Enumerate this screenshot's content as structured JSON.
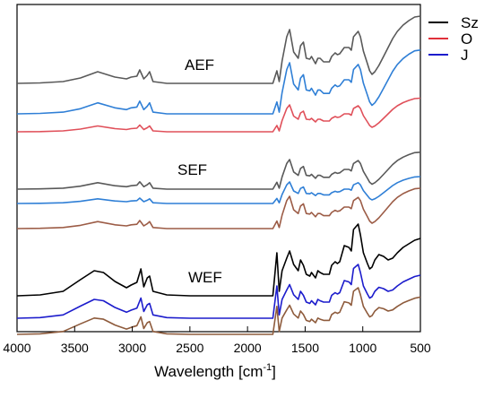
{
  "chart_data": {
    "type": "line",
    "title": "",
    "xlabel": "Wavelength [cm",
    "xlabel_sup": "-1",
    "xlabel_close": "]",
    "ylabel": "",
    "xlim": [
      4000,
      500
    ],
    "x_reversed": true,
    "grid": false,
    "legend_position": "top-right",
    "xticks": [
      4000,
      3500,
      3000,
      2500,
      2000,
      1500,
      1000,
      500
    ],
    "xtick_labels": [
      "4000",
      "3500",
      "3000",
      "2500",
      "2000",
      "1500",
      "1000",
      "500"
    ],
    "legend": [
      {
        "label": "Sz",
        "color": "#000000"
      },
      {
        "label": "O",
        "color": "#e0303a"
      },
      {
        "label": "J",
        "color": "#1c1ccc"
      }
    ],
    "group_labels": {
      "aef": "AEF",
      "sef": "SEF",
      "wef": "WEF"
    },
    "profiles": {
      "standard": [
        [
          4000,
          0
        ],
        [
          3800,
          0.5
        ],
        [
          3600,
          2
        ],
        [
          3450,
          6
        ],
        [
          3300,
          13
        ],
        [
          3150,
          7
        ],
        [
          3050,
          5
        ],
        [
          3010,
          7
        ],
        [
          2960,
          8
        ],
        [
          2935,
          15
        ],
        [
          2900,
          5
        ],
        [
          2870,
          9
        ],
        [
          2850,
          13
        ],
        [
          2820,
          2
        ],
        [
          2700,
          0
        ],
        [
          2500,
          0
        ],
        [
          2300,
          0
        ],
        [
          2100,
          0
        ],
        [
          1900,
          0
        ],
        [
          1780,
          0
        ],
        [
          1745,
          14
        ],
        [
          1725,
          2
        ],
        [
          1700,
          25
        ],
        [
          1660,
          52
        ],
        [
          1635,
          60
        ],
        [
          1600,
          35
        ],
        [
          1560,
          28
        ],
        [
          1540,
          42
        ],
        [
          1515,
          46
        ],
        [
          1490,
          28
        ],
        [
          1460,
          27
        ],
        [
          1445,
          30
        ],
        [
          1410,
          22
        ],
        [
          1390,
          28
        ],
        [
          1370,
          28
        ],
        [
          1340,
          24
        ],
        [
          1320,
          24
        ],
        [
          1290,
          24
        ],
        [
          1270,
          30
        ],
        [
          1240,
          34
        ],
        [
          1220,
          32
        ],
        [
          1200,
          33
        ],
        [
          1160,
          40
        ],
        [
          1120,
          40
        ],
        [
          1100,
          37
        ],
        [
          1080,
          52
        ],
        [
          1040,
          58
        ],
        [
          1020,
          52
        ],
        [
          995,
          36
        ],
        [
          960,
          22
        ],
        [
          940,
          14
        ],
        [
          920,
          10
        ],
        [
          895,
          13
        ],
        [
          860,
          20
        ],
        [
          820,
          30
        ],
        [
          780,
          40
        ],
        [
          740,
          50
        ],
        [
          700,
          58
        ],
        [
          650,
          65
        ],
        [
          600,
          70
        ],
        [
          550,
          74
        ],
        [
          500,
          75
        ]
      ],
      "wef": [
        [
          4000,
          0
        ],
        [
          3800,
          1
        ],
        [
          3600,
          5
        ],
        [
          3450,
          18
        ],
        [
          3330,
          28
        ],
        [
          3250,
          26
        ],
        [
          3150,
          16
        ],
        [
          3050,
          9
        ],
        [
          3010,
          12
        ],
        [
          2960,
          15
        ],
        [
          2925,
          30
        ],
        [
          2900,
          10
        ],
        [
          2870,
          20
        ],
        [
          2850,
          22
        ],
        [
          2820,
          5
        ],
        [
          2700,
          1
        ],
        [
          2500,
          0
        ],
        [
          2300,
          0
        ],
        [
          2100,
          0
        ],
        [
          1900,
          0
        ],
        [
          1780,
          0
        ],
        [
          1745,
          48
        ],
        [
          1725,
          5
        ],
        [
          1700,
          28
        ],
        [
          1660,
          42
        ],
        [
          1635,
          50
        ],
        [
          1600,
          35
        ],
        [
          1560,
          28
        ],
        [
          1540,
          40
        ],
        [
          1515,
          34
        ],
        [
          1490,
          24
        ],
        [
          1460,
          22
        ],
        [
          1445,
          26
        ],
        [
          1410,
          20
        ],
        [
          1390,
          28
        ],
        [
          1370,
          26
        ],
        [
          1340,
          24
        ],
        [
          1320,
          24
        ],
        [
          1290,
          24
        ],
        [
          1270,
          34
        ],
        [
          1240,
          38
        ],
        [
          1220,
          36
        ],
        [
          1200,
          38
        ],
        [
          1160,
          56
        ],
        [
          1120,
          54
        ],
        [
          1100,
          50
        ],
        [
          1080,
          74
        ],
        [
          1040,
          80
        ],
        [
          1020,
          68
        ],
        [
          995,
          48
        ],
        [
          960,
          36
        ],
        [
          940,
          30
        ],
        [
          920,
          32
        ],
        [
          895,
          40
        ],
        [
          860,
          46
        ],
        [
          820,
          44
        ],
        [
          780,
          40
        ],
        [
          740,
          42
        ],
        [
          700,
          48
        ],
        [
          650,
          54
        ],
        [
          600,
          58
        ],
        [
          550,
          62
        ],
        [
          500,
          64
        ]
      ]
    },
    "series": [
      {
        "name": "Sz",
        "group": "AEF",
        "color": "#595959",
        "profile": "standard",
        "offset": 93,
        "scale": 1.0
      },
      {
        "name": "J",
        "group": "AEF",
        "color": "#2f7fd6",
        "profile": "standard",
        "offset": 127,
        "scale": 0.95
      },
      {
        "name": "O",
        "group": "AEF",
        "color": "#e0505a",
        "profile": "standard",
        "offset": 147,
        "scale": 0.5
      },
      {
        "name": "Sz",
        "group": "SEF",
        "color": "#595959",
        "profile": "standard",
        "offset": 211,
        "scale": 0.55
      },
      {
        "name": "J",
        "group": "SEF",
        "color": "#2f7fd6",
        "profile": "standard",
        "offset": 227,
        "scale": 0.4
      },
      {
        "name": "O",
        "group": "SEF",
        "color": "#9c5c46",
        "profile": "standard",
        "offset": 255,
        "scale": 0.6
      },
      {
        "name": "Sz",
        "group": "WEF",
        "color": "#000000",
        "profile": "wef",
        "offset": 330,
        "scale": 1.0
      },
      {
        "name": "J",
        "group": "WEF",
        "color": "#1c1ccc",
        "profile": "wef",
        "offset": 355,
        "scale": 0.75
      },
      {
        "name": "O",
        "group": "WEF",
        "color": "#8e5b3c",
        "profile": "wef",
        "offset": 373,
        "scale": 0.65
      }
    ]
  }
}
